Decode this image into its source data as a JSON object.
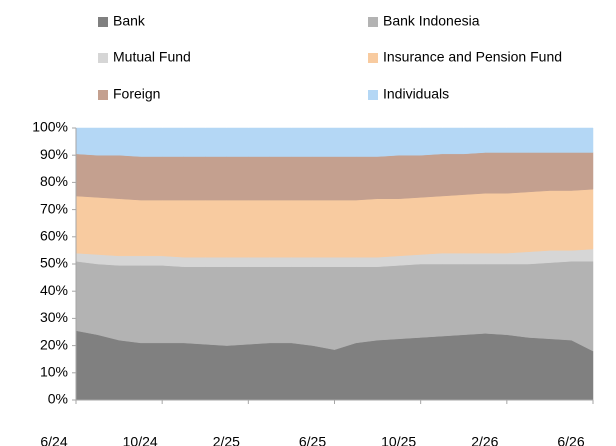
{
  "chart_data": {
    "type": "stacked_area",
    "categories": [
      "6/24",
      null,
      null,
      null,
      "10/24",
      null,
      null,
      null,
      "2/25",
      null,
      null,
      null,
      "6/25",
      null,
      null,
      null,
      "10/25",
      null,
      null,
      null,
      "2/26",
      null,
      null,
      null,
      "6/26"
    ],
    "series": [
      {
        "name": "Bank",
        "color": "#808080",
        "values": [
          25.5,
          24,
          22,
          21,
          21,
          21,
          20.5,
          20,
          20.5,
          21,
          21,
          20,
          18.5,
          21,
          22,
          22.5,
          23,
          23.5,
          24,
          24.5,
          24,
          23,
          22.5,
          22,
          18
        ]
      },
      {
        "name": "Bank Indonesia",
        "color": "#b3b3b3",
        "values": [
          25.5,
          26,
          27.5,
          28.5,
          28.5,
          28,
          28.5,
          29,
          28.5,
          28,
          28,
          29,
          30.5,
          28,
          27,
          27,
          27,
          26.5,
          26,
          25.5,
          26,
          27,
          28,
          29,
          33
        ]
      },
      {
        "name": "Mutual Fund",
        "color": "#d6d6d6",
        "values": [
          3,
          3.5,
          3.5,
          3.5,
          3.5,
          3.5,
          3.5,
          3.5,
          3.5,
          3.5,
          3.5,
          3.5,
          3.5,
          3.5,
          3.5,
          3.5,
          3.5,
          4,
          4,
          4,
          4,
          4.5,
          4.5,
          4,
          4.5
        ]
      },
      {
        "name": "Insurance and Pension Fund",
        "color": "#f8cba0",
        "values": [
          21,
          21,
          21,
          20.5,
          20.5,
          21,
          21,
          21,
          21,
          21,
          21,
          21,
          21,
          21,
          21.5,
          21,
          21,
          21,
          21.5,
          22,
          22,
          22,
          22,
          22,
          22
        ]
      },
      {
        "name": "Foreign",
        "color": "#c4a08f",
        "values": [
          15.5,
          15.5,
          16,
          16,
          16,
          16,
          16,
          16,
          16,
          16,
          16,
          16,
          16,
          16,
          15.5,
          16,
          15.5,
          15.5,
          15,
          15,
          15,
          14.5,
          14,
          14,
          13.5
        ]
      },
      {
        "name": "Individuals",
        "color": "#b4d7f5",
        "values": [
          9.5,
          10,
          10,
          10.5,
          10.5,
          10.5,
          10.5,
          10.5,
          10.5,
          10.5,
          10.5,
          10.5,
          10.5,
          10.5,
          10.5,
          10,
          10,
          9.5,
          9.5,
          9,
          9,
          9,
          9,
          9,
          9
        ]
      }
    ],
    "ylim": [
      0,
      100
    ],
    "yticks": [
      {
        "value": 0,
        "label": "0%"
      },
      {
        "value": 10,
        "label": "10%"
      },
      {
        "value": 20,
        "label": "20%"
      },
      {
        "value": 30,
        "label": "30%"
      },
      {
        "value": 40,
        "label": "40%"
      },
      {
        "value": 50,
        "label": "50%"
      },
      {
        "value": 60,
        "label": "60%"
      },
      {
        "value": 70,
        "label": "70%"
      },
      {
        "value": 80,
        "label": "80%"
      },
      {
        "value": 90,
        "label": "90%"
      },
      {
        "value": 100,
        "label": "100%"
      }
    ],
    "legend": "top"
  }
}
